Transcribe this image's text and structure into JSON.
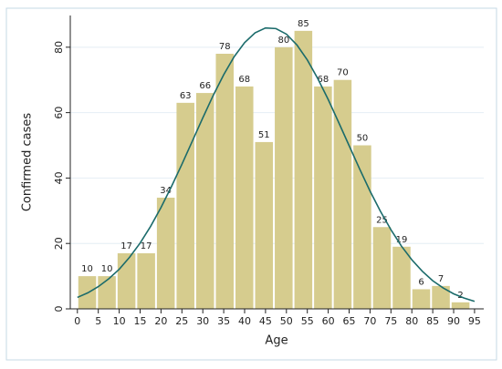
{
  "chart_data": {
    "type": "histogram",
    "xlabel": "Age",
    "ylabel": "Confirmed cases",
    "bins": [
      0,
      4.7,
      9.4,
      14.1,
      18.8,
      23.5,
      28.2,
      32.9,
      37.6,
      42.3,
      47,
      51.7,
      56.4,
      61.1,
      65.8,
      70.5,
      75.2,
      79.9,
      84.6,
      89.3,
      94
    ],
    "counts": [
      10,
      10,
      17,
      17,
      34,
      63,
      66,
      78,
      68,
      51,
      80,
      85,
      68,
      70,
      50,
      25,
      19,
      6,
      7,
      2
    ],
    "color": "#d6cc8e",
    "curve": {
      "color": "#1b6b6b",
      "x": [
        0,
        2.5,
        5,
        7.5,
        10,
        12.5,
        15,
        17.5,
        20,
        22.5,
        25,
        27.5,
        30,
        32.5,
        35,
        37.5,
        40,
        42.5,
        45,
        47.5,
        50,
        52.5,
        55,
        57.5,
        60,
        62.5,
        65,
        67.5,
        70,
        72.5,
        75,
        77.5,
        80,
        82.5,
        85,
        87.5,
        90,
        92.5,
        95
      ],
      "values": [
        3.5,
        4.9,
        6.8,
        9.2,
        12.1,
        15.8,
        20.1,
        25.2,
        31.0,
        37.4,
        44.2,
        51.3,
        58.4,
        65.3,
        71.6,
        77.1,
        81.4,
        84.4,
        85.9,
        85.7,
        84.0,
        80.7,
        76.1,
        70.4,
        64.0,
        57.0,
        49.9,
        42.8,
        36.0,
        29.8,
        24.2,
        19.2,
        15.0,
        11.5,
        8.6,
        6.4,
        4.6,
        3.3,
        2.3
      ]
    },
    "xlim": [
      -1.7,
      97.2
    ],
    "ylim": [
      0,
      89.7
    ],
    "xticks": [
      0,
      5,
      10,
      15,
      20,
      25,
      30,
      35,
      40,
      45,
      50,
      55,
      60,
      65,
      70,
      75,
      80,
      85,
      90,
      95
    ],
    "yticks": [
      0,
      20,
      40,
      60,
      80
    ],
    "grid": true
  }
}
